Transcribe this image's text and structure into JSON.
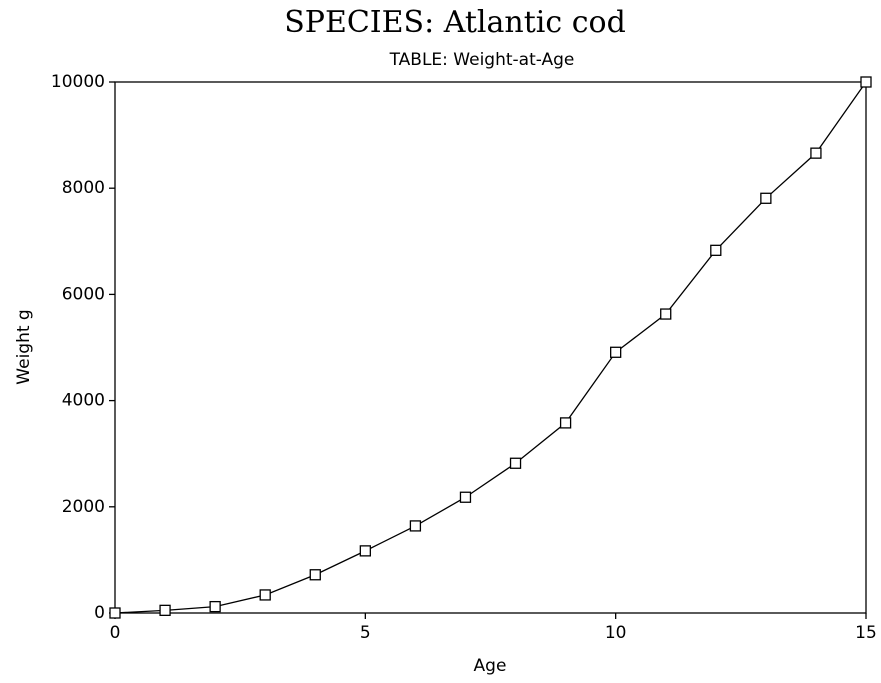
{
  "chart_data": {
    "type": "line",
    "title": "SPECIES: Atlantic cod",
    "subtitle": "TABLE: Weight-at-Age",
    "x_label": "Age",
    "y_label": "Weight g",
    "series": [
      {
        "name": "Weight-at-Age",
        "color": "#000000",
        "x": [
          0,
          1,
          2,
          3,
          4,
          5,
          6,
          7,
          8,
          9,
          10,
          11,
          12,
          13,
          14,
          15
        ],
        "values": [
          0,
          50,
          120,
          340,
          720,
          1170,
          1640,
          2180,
          2820,
          3580,
          4910,
          5630,
          6830,
          7810,
          8660,
          10000
        ]
      }
    ],
    "xlim": [
      0,
      15
    ],
    "xticks": [
      0,
      5,
      10,
      15
    ],
    "ylim": [
      0,
      10000
    ],
    "yticks": [
      0,
      2000,
      4000,
      6000,
      8000,
      10000
    ],
    "grid": false
  }
}
